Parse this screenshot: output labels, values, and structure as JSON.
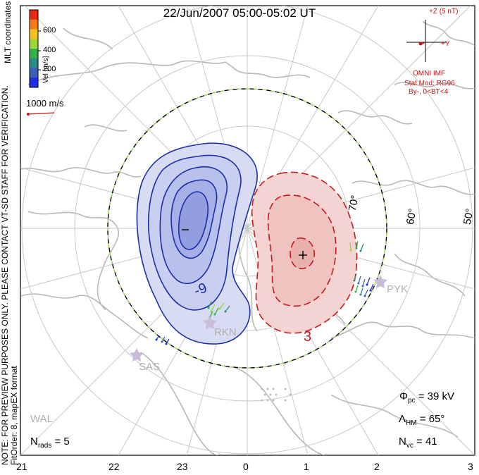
{
  "title": "22/Jun/2007 05:00-05:02 UT",
  "side_text": {
    "line1": "NOTE: FOR PREVIEW PURPOSES ONLY. PLEASE CONTACT VT-SD STAFF FOR VERIFICATION.",
    "line2": "FitOrder: 8, mapEX format",
    "coords": "MLT coordinates"
  },
  "colorbar": {
    "label": "Vel [m/s]",
    "ticks": [
      "600",
      "400",
      "200"
    ],
    "colors": [
      "#e82a10",
      "#f57c14",
      "#f7c21c",
      "#9dd53a",
      "#32b24a",
      "#2a8a8c",
      "#3b5fb8",
      "#1c2ee0"
    ]
  },
  "vector_scale": "1000 m/s",
  "imf": {
    "z_label": "+Z (5 nT)",
    "y_label": "+Y",
    "source": "OMNI IMF",
    "model": "Stat Mod: RG96",
    "condition": "By-, 0<BT<4"
  },
  "lat_labels": [
    "70°",
    "60°",
    "50°"
  ],
  "contour_labels": {
    "negative": "-9",
    "positive": "3"
  },
  "extrema": {
    "min": "−",
    "max": "+"
  },
  "radars": [
    "RKN",
    "PYK",
    "SAS",
    "WAL"
  ],
  "stats": {
    "phi_pc": "39 kV",
    "lambda_hm": "65°",
    "n_vc": "41",
    "n_rads": "5"
  },
  "mlt_ticks": [
    "21",
    "22",
    "23",
    "0",
    "1",
    "2",
    "3"
  ],
  "colors": {
    "negative_fill": "#d8dcf2",
    "negative_line": "#1a2fa8",
    "positive_fill": "#f4d4d2",
    "positive_line": "#c81a1a",
    "coastline": "#b8b8b8",
    "grid": "#c8c8c8",
    "hm_boundary_dash": "#8fd04a"
  }
}
